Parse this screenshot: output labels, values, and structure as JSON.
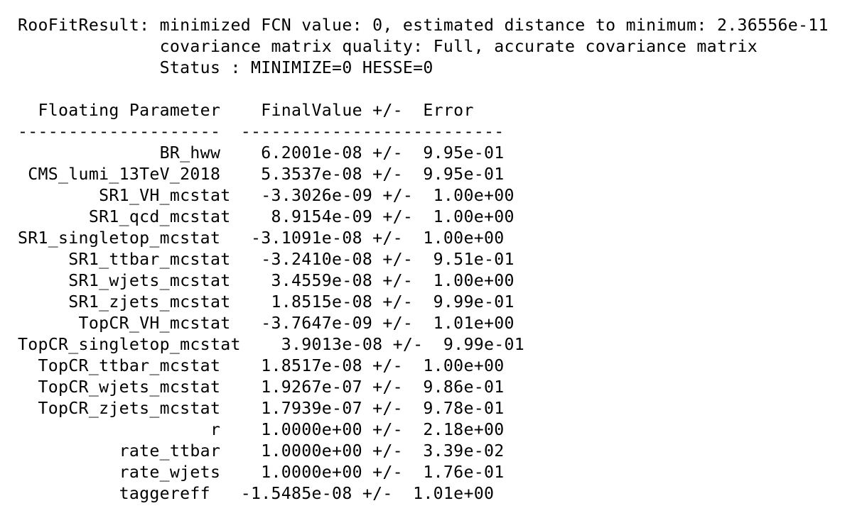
{
  "fit_result": {
    "header": {
      "line1": "RooFitResult: minimized FCN value: 0, estimated distance to minimum: 2.36556e-11",
      "line2": "              covariance matrix quality: Full, accurate covariance matrix",
      "line3": "              Status : MINIMIZE=0 HESSE=0"
    },
    "table": {
      "header_line": "  Floating Parameter    FinalValue +/-  Error",
      "separator_line": "--------------------  --------------------------",
      "rows": [
        "              BR_hww    6.2001e-08 +/-  9.95e-01",
        " CMS_lumi_13TeV_2018    5.3537e-08 +/-  9.95e-01",
        "        SR1_VH_mcstat   -3.3026e-09 +/-  1.00e+00",
        "       SR1_qcd_mcstat    8.9154e-09 +/-  1.00e+00",
        "SR1_singletop_mcstat   -3.1091e-08 +/-  1.00e+00",
        "     SR1_ttbar_mcstat   -3.2410e-08 +/-  9.51e-01",
        "     SR1_wjets_mcstat    3.4559e-08 +/-  1.00e+00",
        "     SR1_zjets_mcstat    1.8515e-08 +/-  9.99e-01",
        "      TopCR_VH_mcstat   -3.7647e-09 +/-  1.01e+00",
        "TopCR_singletop_mcstat    3.9013e-08 +/-  9.99e-01",
        "  TopCR_ttbar_mcstat    1.8517e-08 +/-  1.00e+00",
        "  TopCR_wjets_mcstat    1.9267e-07 +/-  9.86e-01",
        "  TopCR_zjets_mcstat    1.7939e-07 +/-  9.78e-01",
        "                   r    1.0000e+00 +/-  2.18e+00",
        "          rate_ttbar    1.0000e+00 +/-  3.39e-02",
        "          rate_wjets    1.0000e+00 +/-  1.76e-01",
        "          taggereff   -1.5485e-08 +/-  1.01e+00"
      ]
    }
  }
}
